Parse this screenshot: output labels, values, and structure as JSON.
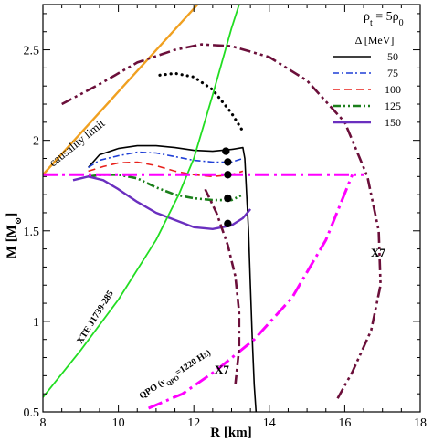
{
  "chart_data": {
    "type": "line",
    "xlabel": "R [km]",
    "ylabel": "M [M",
    "ylabel_sub": "⊙",
    "ylabel_close": "]",
    "xlim": [
      8,
      18
    ],
    "ylim": [
      0.5,
      2.75
    ],
    "x_ticks": [
      8,
      10,
      12,
      14,
      16,
      18
    ],
    "y_ticks": [
      0.5,
      1,
      1.5,
      2,
      2.5
    ],
    "x_tick_labels": [
      "8",
      "10",
      "12",
      "14",
      "16",
      "18"
    ],
    "y_tick_labels": [
      "0.5",
      "1",
      "1.5",
      "2",
      "2.5"
    ],
    "top_label": "ρ",
    "top_label_sub": "t",
    "top_label_rest": " = 5ρ",
    "top_label_sub2": "0",
    "legend_title": "Δ [MeV]",
    "legend": {
      "placement": "top-right",
      "entries": [
        {
          "label": "50",
          "color": "#000000",
          "dash": "solid"
        },
        {
          "label": "75",
          "color": "#1f3fd6",
          "dash": "dashdot"
        },
        {
          "label": "100",
          "color": "#e8201a",
          "dash": "dashed"
        },
        {
          "label": "125",
          "color": "#1a7f1a",
          "dash": "dashdotdot"
        },
        {
          "label": "150",
          "color": "#6a2fbf",
          "dash": "solid-thick"
        }
      ]
    },
    "annotations": {
      "causality": "causality limit",
      "xte": "XTE J1739-285",
      "qpo": "QPO (ν",
      "qpo_sub": "QPO",
      "qpo_rest": "=1220 Hz)",
      "x7_right": "X7",
      "x7_bottom": "X7"
    },
    "series": [
      {
        "name": "50",
        "color": "#000000",
        "style": "solid",
        "points": [
          [
            9.2,
            1.85
          ],
          [
            9.5,
            1.92
          ],
          [
            10.0,
            1.955
          ],
          [
            10.5,
            1.97
          ],
          [
            11.0,
            1.97
          ],
          [
            11.5,
            1.96
          ],
          [
            12.0,
            1.945
          ],
          [
            12.5,
            1.94
          ],
          [
            13.0,
            1.95
          ],
          [
            13.3,
            1.96
          ],
          [
            13.35,
            1.9
          ],
          [
            13.4,
            1.7
          ],
          [
            13.45,
            1.5
          ],
          [
            13.5,
            1.2
          ],
          [
            13.55,
            0.9
          ],
          [
            13.6,
            0.65
          ],
          [
            13.65,
            0.5
          ]
        ]
      },
      {
        "name": "75",
        "color": "#1f3fd6",
        "style": "dashdot",
        "points": [
          [
            9.2,
            1.85
          ],
          [
            9.5,
            1.89
          ],
          [
            10.0,
            1.915
          ],
          [
            10.5,
            1.935
          ],
          [
            11.0,
            1.93
          ],
          [
            11.5,
            1.91
          ],
          [
            12.0,
            1.89
          ],
          [
            12.5,
            1.88
          ],
          [
            13.0,
            1.88
          ],
          [
            13.3,
            1.9
          ]
        ]
      },
      {
        "name": "100",
        "color": "#e8201a",
        "style": "dashed",
        "points": [
          [
            9.2,
            1.83
          ],
          [
            9.6,
            1.855
          ],
          [
            10.0,
            1.875
          ],
          [
            10.5,
            1.88
          ],
          [
            11.0,
            1.86
          ],
          [
            11.5,
            1.83
          ],
          [
            12.0,
            1.81
          ],
          [
            12.5,
            1.8
          ],
          [
            13.0,
            1.81
          ],
          [
            13.3,
            1.83
          ]
        ]
      },
      {
        "name": "125",
        "color": "#1a7f1a",
        "style": "dashdotdot",
        "points": [
          [
            9.2,
            1.8
          ],
          [
            9.6,
            1.81
          ],
          [
            10.0,
            1.81
          ],
          [
            10.5,
            1.79
          ],
          [
            11.0,
            1.74
          ],
          [
            11.5,
            1.7
          ],
          [
            12.0,
            1.68
          ],
          [
            12.5,
            1.67
          ],
          [
            13.0,
            1.67
          ],
          [
            13.3,
            1.7
          ]
        ]
      },
      {
        "name": "150",
        "color": "#6a2fbf",
        "style": "solid-thick",
        "points": [
          [
            8.8,
            1.78
          ],
          [
            9.2,
            1.8
          ],
          [
            9.6,
            1.78
          ],
          [
            10.0,
            1.73
          ],
          [
            10.5,
            1.66
          ],
          [
            11.0,
            1.6
          ],
          [
            11.5,
            1.56
          ],
          [
            12.0,
            1.52
          ],
          [
            12.5,
            1.51
          ],
          [
            13.0,
            1.53
          ],
          [
            13.3,
            1.57
          ],
          [
            13.5,
            1.62
          ]
        ]
      },
      {
        "name": "",
        "color": "#000000",
        "style": "dotted",
        "points": [
          [
            11.1,
            2.36
          ],
          [
            11.5,
            2.37
          ],
          [
            12.0,
            2.35
          ],
          [
            12.5,
            2.28
          ],
          [
            13.0,
            2.15
          ],
          [
            13.3,
            2.05
          ]
        ]
      },
      {
        "name": "",
        "color": "#f0a020",
        "style": "causality",
        "points": [
          [
            8.0,
            1.81
          ],
          [
            12.1,
            2.75
          ]
        ]
      },
      {
        "name": "",
        "color": "#22dd22",
        "style": "xte",
        "points": [
          [
            8.0,
            0.58
          ],
          [
            9.0,
            0.84
          ],
          [
            10.0,
            1.12
          ],
          [
            11.0,
            1.45
          ],
          [
            11.6,
            1.7
          ],
          [
            12.0,
            1.9
          ],
          [
            12.5,
            2.25
          ],
          [
            13.0,
            2.62
          ],
          [
            13.2,
            2.75
          ]
        ]
      },
      {
        "name": "",
        "color": "#ff00ff",
        "style": "magenta-h",
        "points": [
          [
            8.0,
            1.81
          ],
          [
            16.5,
            1.81
          ]
        ]
      },
      {
        "name": "",
        "color": "#ff00ff",
        "style": "magenta-diag",
        "points": [
          [
            10.8,
            0.52
          ],
          [
            11.7,
            0.6
          ],
          [
            12.6,
            0.73
          ],
          [
            13.6,
            0.9
          ],
          [
            14.6,
            1.13
          ],
          [
            15.5,
            1.45
          ],
          [
            16.2,
            1.81
          ]
        ]
      },
      {
        "name": "",
        "color": "#6b0f3a",
        "style": "x7-outer",
        "points": [
          [
            8.5,
            2.2
          ],
          [
            9.5,
            2.31
          ],
          [
            10.5,
            2.43
          ],
          [
            11.5,
            2.5
          ],
          [
            12.2,
            2.53
          ],
          [
            13.0,
            2.52
          ],
          [
            14.0,
            2.46
          ],
          [
            15.0,
            2.33
          ],
          [
            16.0,
            2.1
          ],
          [
            16.6,
            1.8
          ],
          [
            16.9,
            1.5
          ],
          [
            16.95,
            1.2
          ],
          [
            16.7,
            0.95
          ],
          [
            16.2,
            0.72
          ],
          [
            15.8,
            0.57
          ]
        ]
      },
      {
        "name": "",
        "color": "#6b0f3a",
        "style": "x7-inner",
        "points": [
          [
            12.3,
            1.73
          ],
          [
            12.6,
            1.6
          ],
          [
            12.9,
            1.42
          ],
          [
            13.1,
            1.25
          ],
          [
            13.2,
            1.05
          ],
          [
            13.2,
            0.85
          ],
          [
            13.1,
            0.65
          ]
        ]
      }
    ],
    "markers": [
      {
        "x": 12.85,
        "y": 1.94
      },
      {
        "x": 12.9,
        "y": 1.88
      },
      {
        "x": 12.9,
        "y": 1.81
      },
      {
        "x": 12.9,
        "y": 1.68
      },
      {
        "x": 12.9,
        "y": 1.54
      }
    ]
  }
}
